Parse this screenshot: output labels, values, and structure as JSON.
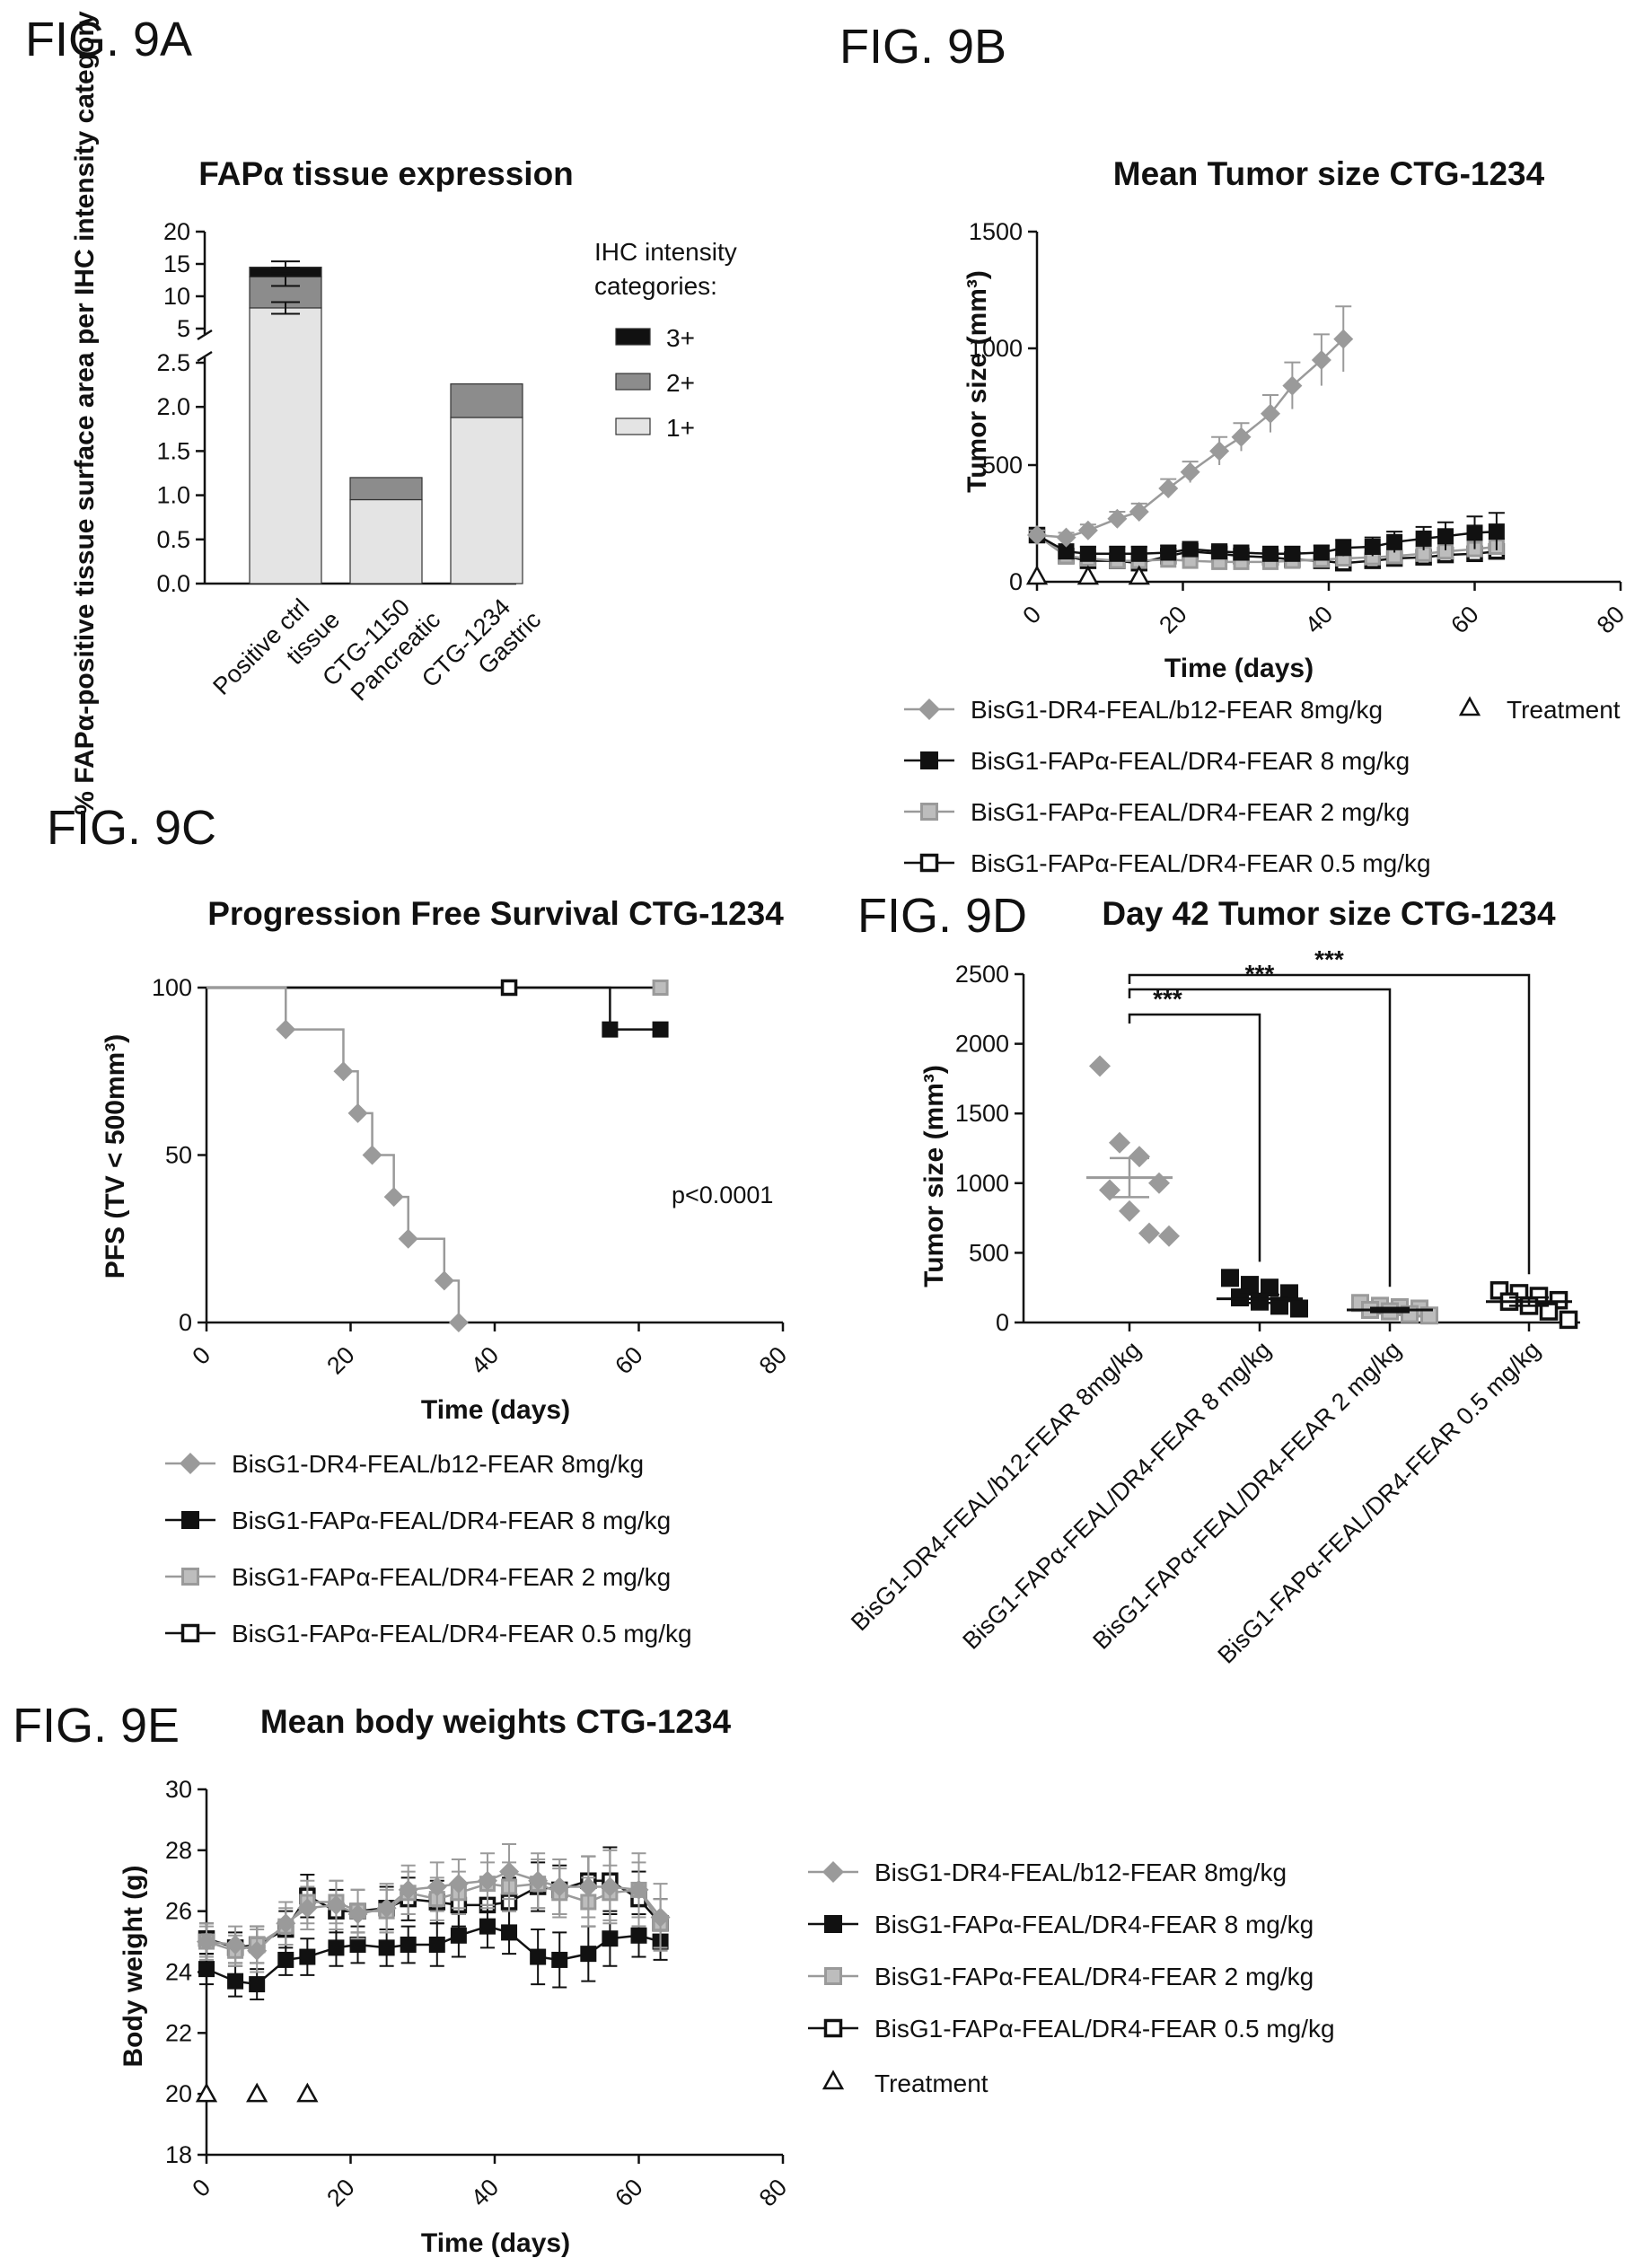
{
  "figure": {
    "a": "FIG. 9A",
    "b": "FIG. 9B",
    "c": "FIG. 9C",
    "d": "FIG. 9D",
    "e": "FIG. 9E"
  },
  "colors": {
    "light": "#e4e4e4",
    "mid": "#8c8c8c",
    "dark": "#111111",
    "grey_series": "#9a9a9a"
  },
  "chart_data": [
    {
      "id": "9A",
      "type": "bar",
      "stacked": true,
      "title": "FAPα tissue expression",
      "ylabel": "% FAPα-positive tissue surface area per IHC intensity category",
      "categories": [
        "Positive ctrl tissue",
        "CTG-1150 Pancreatic",
        "CTG-1234 Gastric"
      ],
      "legend_title": "IHC intensity categories:",
      "y_lower_range": [
        0,
        2.5
      ],
      "y_lower_ticks": [
        "0.0",
        "0.5",
        "1.0",
        "1.5",
        "2.0",
        "2.5"
      ],
      "y_upper_range": [
        5,
        20
      ],
      "y_upper_ticks": [
        "5",
        "10",
        "15",
        "20"
      ],
      "axis_break": true,
      "series": [
        {
          "name": "3+",
          "values": [
            1.5,
            0.0,
            0.0
          ],
          "color": "#111111"
        },
        {
          "name": "2+",
          "values": [
            4.8,
            0.25,
            0.38
          ],
          "color": "#8c8c8c"
        },
        {
          "name": "1+",
          "values": [
            8.2,
            0.95,
            1.88
          ],
          "color": "#e4e4e4"
        }
      ],
      "error_bars": [
        {
          "center": 8.2,
          "err": 0.9
        },
        {
          "center": 13.0,
          "err": 1.4
        },
        {
          "center": 14.5,
          "err": 0.9
        }
      ]
    },
    {
      "id": "9B",
      "type": "line",
      "title": "Mean Tumor size CTG-1234",
      "xlabel": "Time (days)",
      "ylabel": "Tumor size (mm³)",
      "xlim": [
        0,
        80
      ],
      "ylim": [
        0,
        1500
      ],
      "xticks": [
        "0",
        "20",
        "40",
        "60",
        "80"
      ],
      "yticks": [
        "0",
        "500",
        "1000",
        "1500"
      ],
      "series": [
        {
          "name": "BisG1-DR4-FEAL/b12-FEAR 8mg/kg",
          "marker": "diamond",
          "x": [
            0,
            4,
            7,
            11,
            14,
            18,
            21,
            25,
            28,
            32,
            35,
            39,
            42
          ],
          "y": [
            200,
            190,
            220,
            270,
            300,
            400,
            470,
            560,
            620,
            720,
            840,
            950,
            1040
          ],
          "err": [
            20,
            20,
            25,
            30,
            35,
            40,
            45,
            60,
            60,
            80,
            100,
            110,
            140
          ]
        },
        {
          "name": "BisG1-FAPα-FEAL/DR4-FEAR 8 mg/kg",
          "marker": "square-filled",
          "x": [
            0,
            4,
            7,
            11,
            14,
            18,
            21,
            25,
            28,
            32,
            35,
            39,
            42,
            46,
            49,
            53,
            56,
            60,
            63
          ],
          "y": [
            200,
            130,
            120,
            120,
            120,
            125,
            140,
            130,
            125,
            120,
            120,
            125,
            145,
            150,
            170,
            185,
            195,
            210,
            215
          ],
          "err": [
            15,
            30,
            30,
            30,
            30,
            30,
            30,
            30,
            30,
            30,
            30,
            30,
            35,
            40,
            45,
            50,
            60,
            70,
            80
          ]
        },
        {
          "name": "BisG1-FAPα-FEAL/DR4-FEAR 2 mg/kg",
          "marker": "square-grey",
          "x": [
            0,
            4,
            7,
            11,
            14,
            18,
            21,
            25,
            28,
            32,
            35,
            39,
            42,
            46,
            49,
            53,
            56,
            60,
            63
          ],
          "y": [
            200,
            110,
            100,
            90,
            90,
            95,
            90,
            85,
            85,
            85,
            90,
            95,
            100,
            105,
            110,
            120,
            130,
            140,
            150
          ],
          "err": [
            15,
            25,
            25,
            20,
            20,
            20,
            20,
            20,
            20,
            20,
            20,
            20,
            20,
            25,
            25,
            25,
            30,
            30,
            35
          ]
        },
        {
          "name": "BisG1-FAPα-FEAL/DR4-FEAR 0.5 mg/kg",
          "marker": "square-open",
          "x": [
            0,
            4,
            7,
            11,
            14,
            18,
            21,
            25,
            28,
            32,
            35,
            39,
            42,
            46,
            49,
            53,
            56,
            60,
            63
          ],
          "y": [
            200,
            110,
            90,
            90,
            80,
            110,
            130,
            120,
            110,
            105,
            95,
            90,
            80,
            90,
            100,
            105,
            115,
            120,
            130
          ],
          "err": [
            15,
            20,
            20,
            20,
            20,
            25,
            25,
            25,
            25,
            25,
            20,
            20,
            20,
            20,
            20,
            20,
            25,
            25,
            25
          ]
        }
      ],
      "treatment": {
        "name": "Treatment",
        "x": [
          0,
          7,
          14
        ],
        "y": [
          0,
          0,
          0
        ]
      }
    },
    {
      "id": "9C",
      "type": "line",
      "step": true,
      "title": "Progression Free Survival CTG-1234",
      "xlabel": "Time (days)",
      "ylabel": "PFS (TV < 500mm³)",
      "annotation": "p<0.0001",
      "xlim": [
        0,
        80
      ],
      "ylim": [
        0,
        100
      ],
      "xticks": [
        "0",
        "20",
        "40",
        "60",
        "80"
      ],
      "yticks": [
        "0",
        "50",
        "100"
      ],
      "series": [
        {
          "name": "BisG1-DR4-FEAL/b12-FEAR 8mg/kg",
          "marker": "diamond",
          "x": [
            0,
            11,
            19,
            21,
            23,
            26,
            28,
            33,
            35
          ],
          "y": [
            100,
            87.5,
            75,
            62.5,
            50,
            37.5,
            25,
            12.5,
            0
          ]
        },
        {
          "name": "BisG1-FAPα-FEAL/DR4-FEAR 8 mg/kg",
          "marker": "square-filled",
          "x": [
            0,
            56,
            63
          ],
          "y": [
            100,
            87.5,
            87.5
          ]
        },
        {
          "name": "BisG1-FAPα-FEAL/DR4-FEAR 2 mg/kg",
          "marker": "square-grey",
          "x": [
            0,
            63
          ],
          "y": [
            100,
            100
          ]
        },
        {
          "name": "BisG1-FAPα-FEAL/DR4-FEAR 0.5 mg/kg",
          "marker": "square-open",
          "x": [
            0,
            42,
            63
          ],
          "y": [
            100,
            100,
            100
          ]
        }
      ]
    },
    {
      "id": "9D",
      "type": "scatter",
      "title": "Day 42 Tumor size CTG-1234",
      "ylabel": "Tumor size (mm³)",
      "ylim": [
        0,
        2500
      ],
      "yticks": [
        "0",
        "500",
        "1000",
        "1500",
        "2000",
        "2500"
      ],
      "categories": [
        "BisG1-DR4-FEAL/b12-FEAR 8mg/kg",
        "BisG1-FAPα-FEAL/DR4-FEAR 8 mg/kg",
        "BisG1-FAPα-FEAL/DR4-FEAR 2 mg/kg",
        "BisG1-FAPα-FEAL/DR4-FEAR 0.5 mg/kg"
      ],
      "groups": [
        {
          "marker": "diamond",
          "values": [
            1840,
            1290,
            1190,
            1000,
            950,
            800,
            640,
            620
          ],
          "mean": 1040,
          "sem": 140
        },
        {
          "marker": "square-filled",
          "values": [
            320,
            270,
            250,
            210,
            180,
            150,
            120,
            100
          ],
          "mean": 170,
          "sem": 30
        },
        {
          "marker": "square-grey",
          "values": [
            140,
            120,
            110,
            100,
            90,
            80,
            60,
            50
          ],
          "mean": 90,
          "sem": 15
        },
        {
          "marker": "square-open",
          "values": [
            230,
            210,
            190,
            160,
            150,
            120,
            80,
            20
          ],
          "mean": 150,
          "sem": 30
        }
      ],
      "significance": [
        {
          "from": 0,
          "to": 1,
          "label": "***"
        },
        {
          "from": 0,
          "to": 2,
          "label": "***"
        },
        {
          "from": 0,
          "to": 3,
          "label": "***"
        }
      ]
    },
    {
      "id": "9E",
      "type": "line",
      "title": "Mean body weights CTG-1234",
      "xlabel": "Time (days)",
      "ylabel": "Body weight (g)",
      "xlim": [
        0,
        80
      ],
      "ylim": [
        18,
        30
      ],
      "xticks": [
        "0",
        "20",
        "40",
        "60",
        "80"
      ],
      "yticks": [
        "18",
        "20",
        "22",
        "24",
        "26",
        "28",
        "30"
      ],
      "series": [
        {
          "name": "BisG1-DR4-FEAL/b12-FEAR 8mg/kg",
          "marker": "diamond",
          "x": [
            0,
            4,
            7,
            11,
            14,
            18,
            21,
            25,
            28,
            32,
            35,
            39,
            42,
            46,
            49,
            53,
            56,
            60,
            63
          ],
          "y": [
            25.0,
            24.9,
            24.7,
            25.6,
            26.1,
            26.2,
            25.9,
            26.1,
            26.7,
            26.8,
            26.9,
            27.0,
            27.3,
            27.0,
            26.8,
            26.8,
            26.8,
            26.7,
            25.8
          ],
          "err": [
            0.6,
            0.6,
            0.7,
            0.7,
            0.7,
            0.8,
            0.8,
            0.8,
            0.8,
            0.8,
            0.8,
            0.9,
            0.9,
            0.9,
            0.9,
            1.0,
            1.2,
            1.2,
            1.1
          ]
        },
        {
          "name": "BisG1-FAPα-FEAL/DR4-FEAR 8 mg/kg",
          "marker": "square-filled",
          "x": [
            0,
            4,
            7,
            11,
            14,
            18,
            21,
            25,
            28,
            32,
            35,
            39,
            42,
            46,
            49,
            53,
            56,
            60,
            63
          ],
          "y": [
            24.1,
            23.7,
            23.6,
            24.4,
            24.5,
            24.8,
            24.9,
            24.8,
            24.9,
            24.9,
            25.2,
            25.5,
            25.3,
            24.5,
            24.4,
            24.6,
            25.1,
            25.2,
            25.0
          ],
          "err": [
            0.5,
            0.5,
            0.5,
            0.5,
            0.6,
            0.6,
            0.6,
            0.6,
            0.6,
            0.7,
            0.7,
            0.7,
            0.7,
            0.9,
            0.9,
            0.9,
            0.9,
            0.7,
            0.6
          ]
        },
        {
          "name": "BisG1-FAPα-FEAL/DR4-FEAR 2 mg/kg",
          "marker": "square-grey",
          "x": [
            0,
            4,
            7,
            11,
            14,
            18,
            21,
            25,
            28,
            32,
            35,
            39,
            42,
            46,
            49,
            53,
            56,
            60,
            63
          ],
          "y": [
            25.0,
            24.7,
            24.9,
            25.5,
            26.3,
            26.3,
            26.0,
            26.0,
            26.6,
            26.4,
            26.6,
            26.9,
            26.8,
            26.9,
            26.6,
            26.3,
            26.6,
            26.7,
            25.6
          ],
          "err": [
            0.5,
            0.5,
            0.6,
            0.6,
            0.7,
            0.7,
            0.7,
            0.7,
            0.7,
            0.7,
            0.7,
            0.7,
            0.8,
            0.8,
            0.8,
            0.8,
            0.9,
            0.9,
            0.8
          ]
        },
        {
          "name": "BisG1-FAPα-FEAL/DR4-FEAR 0.5 mg/kg",
          "marker": "square-open",
          "x": [
            0,
            4,
            7,
            11,
            14,
            18,
            21,
            25,
            28,
            32,
            35,
            39,
            42,
            46,
            49,
            53,
            56,
            60,
            63
          ],
          "y": [
            25.1,
            24.8,
            24.9,
            25.4,
            26.5,
            26.0,
            26.0,
            26.1,
            26.4,
            26.3,
            26.2,
            26.2,
            26.3,
            26.8,
            26.7,
            27.0,
            27.0,
            26.4,
            25.6
          ],
          "err": [
            0.5,
            0.5,
            0.6,
            0.6,
            0.7,
            0.7,
            0.7,
            0.7,
            0.7,
            0.7,
            0.7,
            0.7,
            0.8,
            0.8,
            0.8,
            0.8,
            1.1,
            0.9,
            0.8
          ]
        }
      ],
      "treatment": {
        "name": "Treatment",
        "x": [
          0,
          7,
          14
        ],
        "y": [
          20,
          20,
          20
        ]
      }
    }
  ]
}
